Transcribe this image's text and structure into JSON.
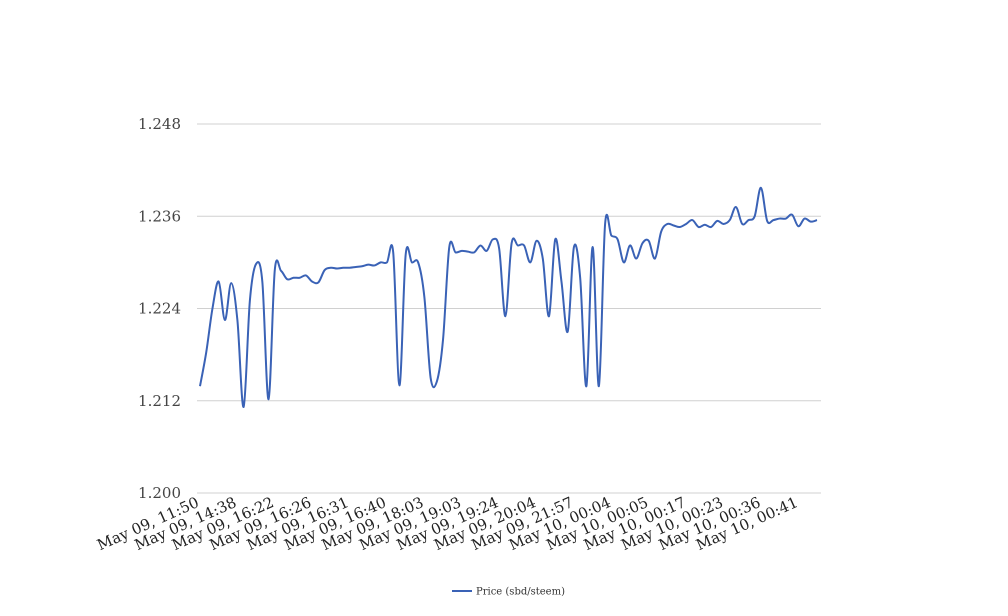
{
  "chart_data": {
    "type": "line",
    "title": "",
    "xlabel": "",
    "ylabel": "",
    "ylim": [
      1.2,
      1.248
    ],
    "y_ticks": [
      "1.200",
      "1.212",
      "1.224",
      "1.236",
      "1.248"
    ],
    "y_tick_values": [
      1.2,
      1.212,
      1.224,
      1.236,
      1.248
    ],
    "x_tick_labels": [
      "May 09, 11:50",
      "May 09, 14:38",
      "May 09, 16:22",
      "May 09, 16:26",
      "May 09, 16:31",
      "May 09, 16:40",
      "May 09, 18:03",
      "May 09, 19:03",
      "May 09, 19:24",
      "May 09, 20:04",
      "May 09, 21:57",
      "May 10, 00:04",
      "May 10, 00:05",
      "May 10, 00:17",
      "May 10, 00:23",
      "May 10, 00:36",
      "May 10, 00:41"
    ],
    "grid": true,
    "legend_position": "bottom",
    "series": [
      {
        "name": "Price (sbd/steem)",
        "color": "#3a62b6",
        "values": [
          1.2139,
          1.2183,
          1.224,
          1.2275,
          1.2225,
          1.2273,
          1.2225,
          1.2112,
          1.225,
          1.2298,
          1.2275,
          1.2122,
          1.229,
          1.2289,
          1.2278,
          1.228,
          1.228,
          1.2283,
          1.2275,
          1.2274,
          1.229,
          1.2293,
          1.2292,
          1.2293,
          1.2293,
          1.2294,
          1.2295,
          1.2297,
          1.2296,
          1.23,
          1.23,
          1.2313,
          1.214,
          1.231,
          1.23,
          1.23,
          1.2255,
          1.215,
          1.2145,
          1.22,
          1.232,
          1.2313,
          1.2315,
          1.2314,
          1.2313,
          1.2322,
          1.2315,
          1.233,
          1.2318,
          1.223,
          1.2325,
          1.2322,
          1.2322,
          1.23,
          1.2328,
          1.2305,
          1.223,
          1.233,
          1.2275,
          1.221,
          1.232,
          1.228,
          1.2139,
          1.232,
          1.2139,
          1.235,
          1.2335,
          1.233,
          1.23,
          1.2322,
          1.2305,
          1.2325,
          1.2328,
          1.2305,
          1.234,
          1.235,
          1.2348,
          1.2346,
          1.235,
          1.2355,
          1.2346,
          1.2349,
          1.2346,
          1.2354,
          1.235,
          1.2355,
          1.2372,
          1.235,
          1.2355,
          1.236,
          1.2397,
          1.2354,
          1.2355,
          1.2357,
          1.2357,
          1.2362,
          1.2347,
          1.2357,
          1.2353,
          1.2355
        ]
      }
    ]
  }
}
